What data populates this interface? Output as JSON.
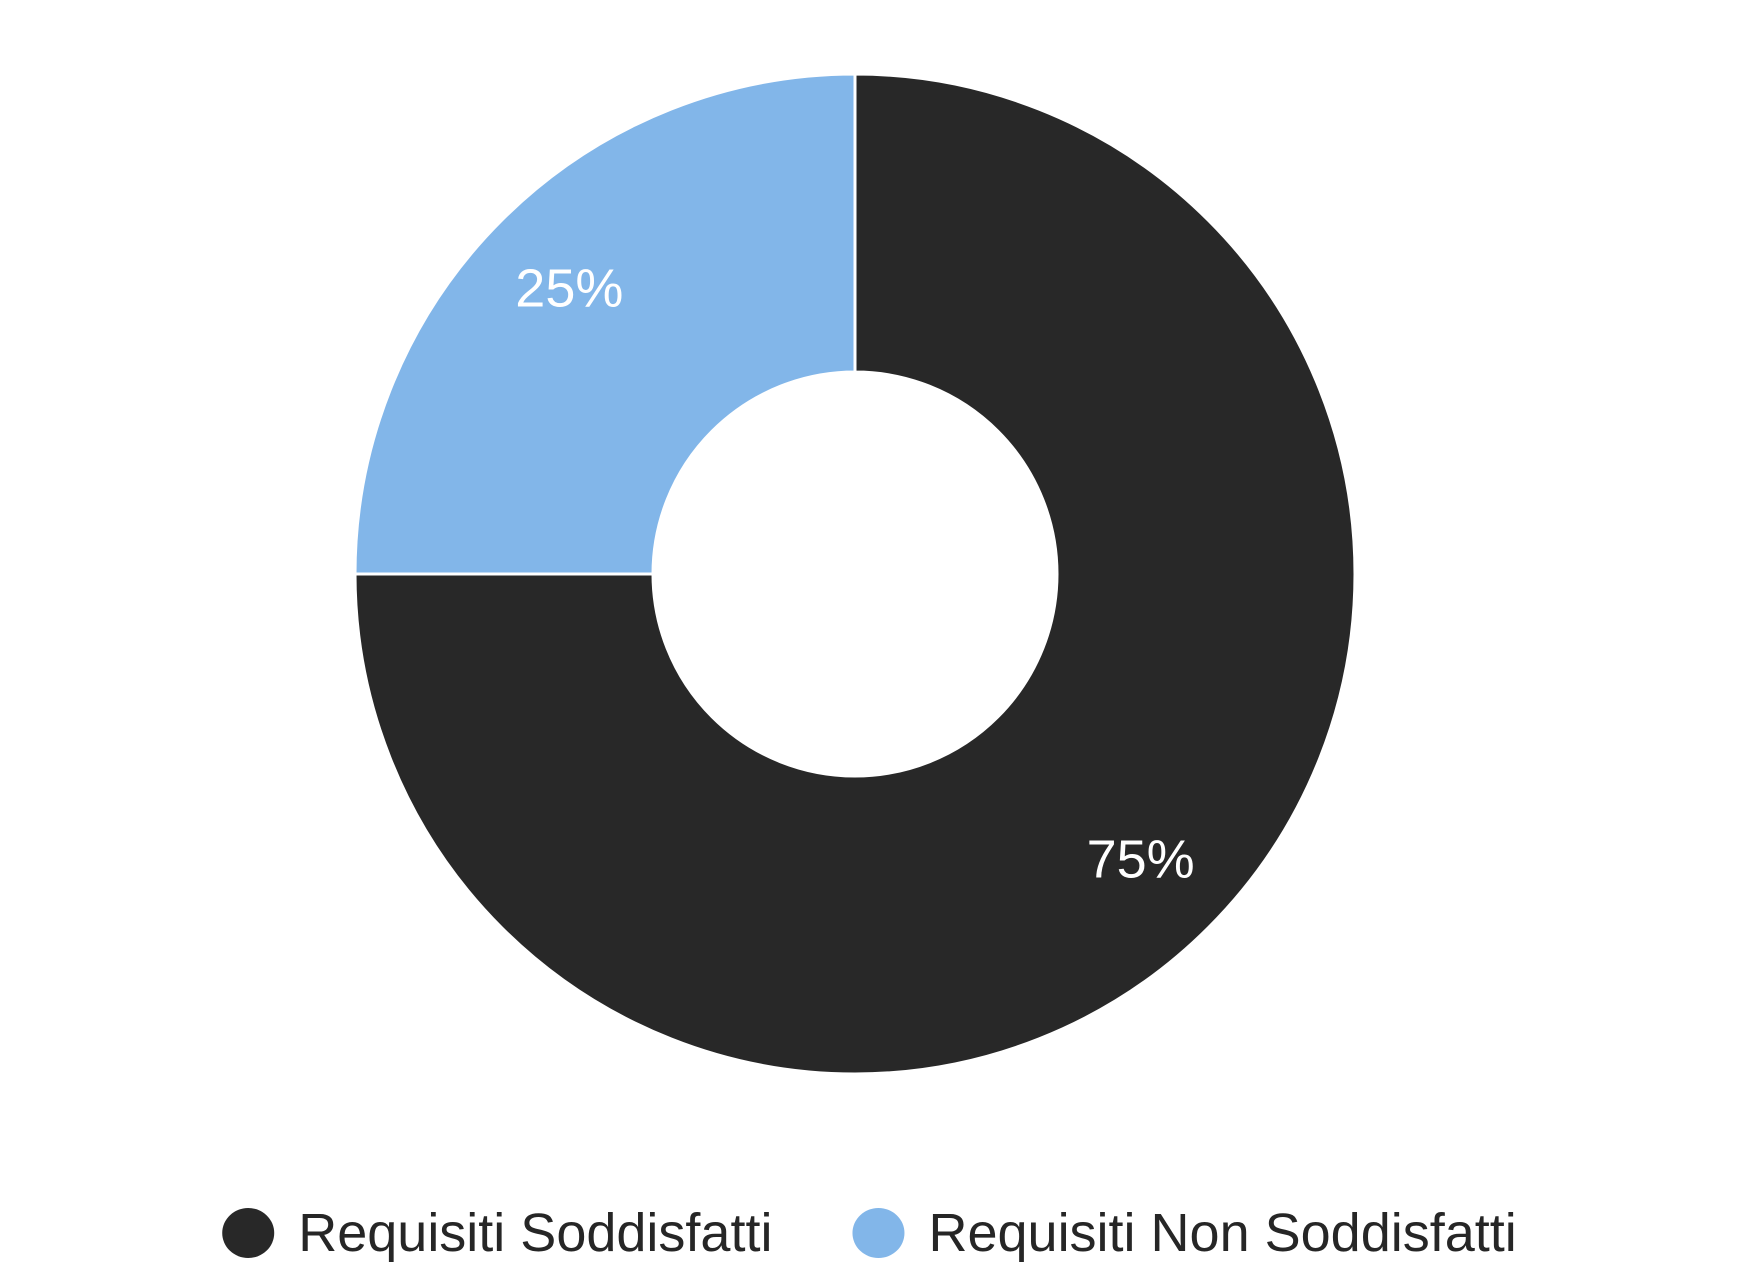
{
  "chart_data": {
    "type": "pie",
    "variant": "donut",
    "series": [
      {
        "name": "Requisiti Soddisfatti",
        "value": 75,
        "label": "75%",
        "color": "#282828"
      },
      {
        "name": "Requisiti Non Soddisfatti",
        "value": 25,
        "label": "25%",
        "color": "#82b6e9"
      }
    ],
    "title": "",
    "legend": {
      "position": "bottom"
    },
    "colors": {
      "slice_border": "#ffffff",
      "label_text": "#ffffff",
      "legend_text": "#262626"
    }
  }
}
